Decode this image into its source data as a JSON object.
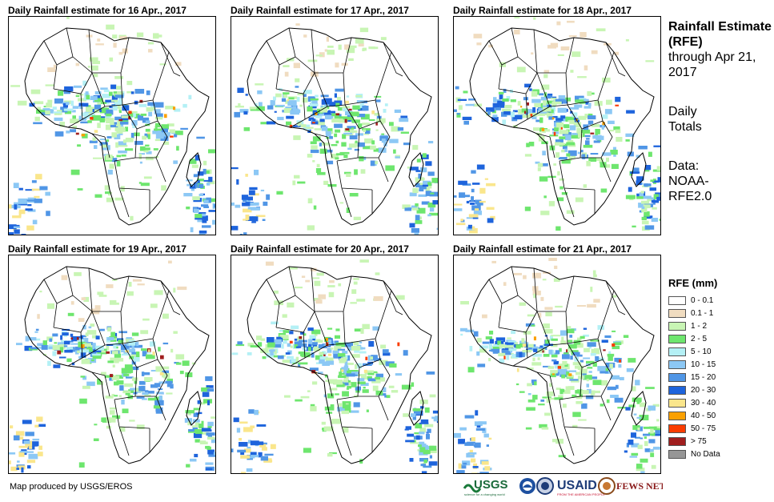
{
  "panels": [
    {
      "title": "Daily Rainfall estimate for 16 Apr., 2017"
    },
    {
      "title": "Daily Rainfall estimate for 17 Apr., 2017"
    },
    {
      "title": "Daily Rainfall estimate for 18 Apr., 2017"
    },
    {
      "title": "Daily Rainfall estimate for 19 Apr., 2017"
    },
    {
      "title": "Daily Rainfall estimate for 20 Apr., 2017"
    },
    {
      "title": "Daily Rainfall estimate for 21 Apr., 2017"
    }
  ],
  "side": {
    "title": "Rainfall Estimate (RFE)",
    "through": "through Apr 21, 2017",
    "totals": "Daily Totals",
    "data": "Data: NOAA-RFE2.0"
  },
  "legend": {
    "title": "RFE (mm)",
    "items": [
      {
        "label": "0 - 0.1",
        "color": "#ffffff"
      },
      {
        "label": "0.1 - 1",
        "color": "#f0dcc0"
      },
      {
        "label": "1 - 2",
        "color": "#c8f5b4"
      },
      {
        "label": "2 - 5",
        "color": "#6ee66e"
      },
      {
        "label": "5 - 10",
        "color": "#b4f0f5"
      },
      {
        "label": "10 - 15",
        "color": "#8cc8f5"
      },
      {
        "label": "15 - 20",
        "color": "#5096e6"
      },
      {
        "label": "20 - 30",
        "color": "#1e64dc"
      },
      {
        "label": "30 - 40",
        "color": "#fae68c"
      },
      {
        "label": "40 - 50",
        "color": "#faa000"
      },
      {
        "label": "50 - 75",
        "color": "#fa3c00"
      },
      {
        "label": "> 75",
        "color": "#a01e1e"
      },
      {
        "label": "No Data",
        "color": "#969696"
      }
    ]
  },
  "footer": "Map produced by USGS/EROS",
  "logos": {
    "usgs": "USGS",
    "usgs_tagline": "science for a changing world",
    "usaid": "USAID",
    "usaid_tagline": "FROM THE AMERICAN PEOPLE",
    "fews": "FEWS NET"
  }
}
